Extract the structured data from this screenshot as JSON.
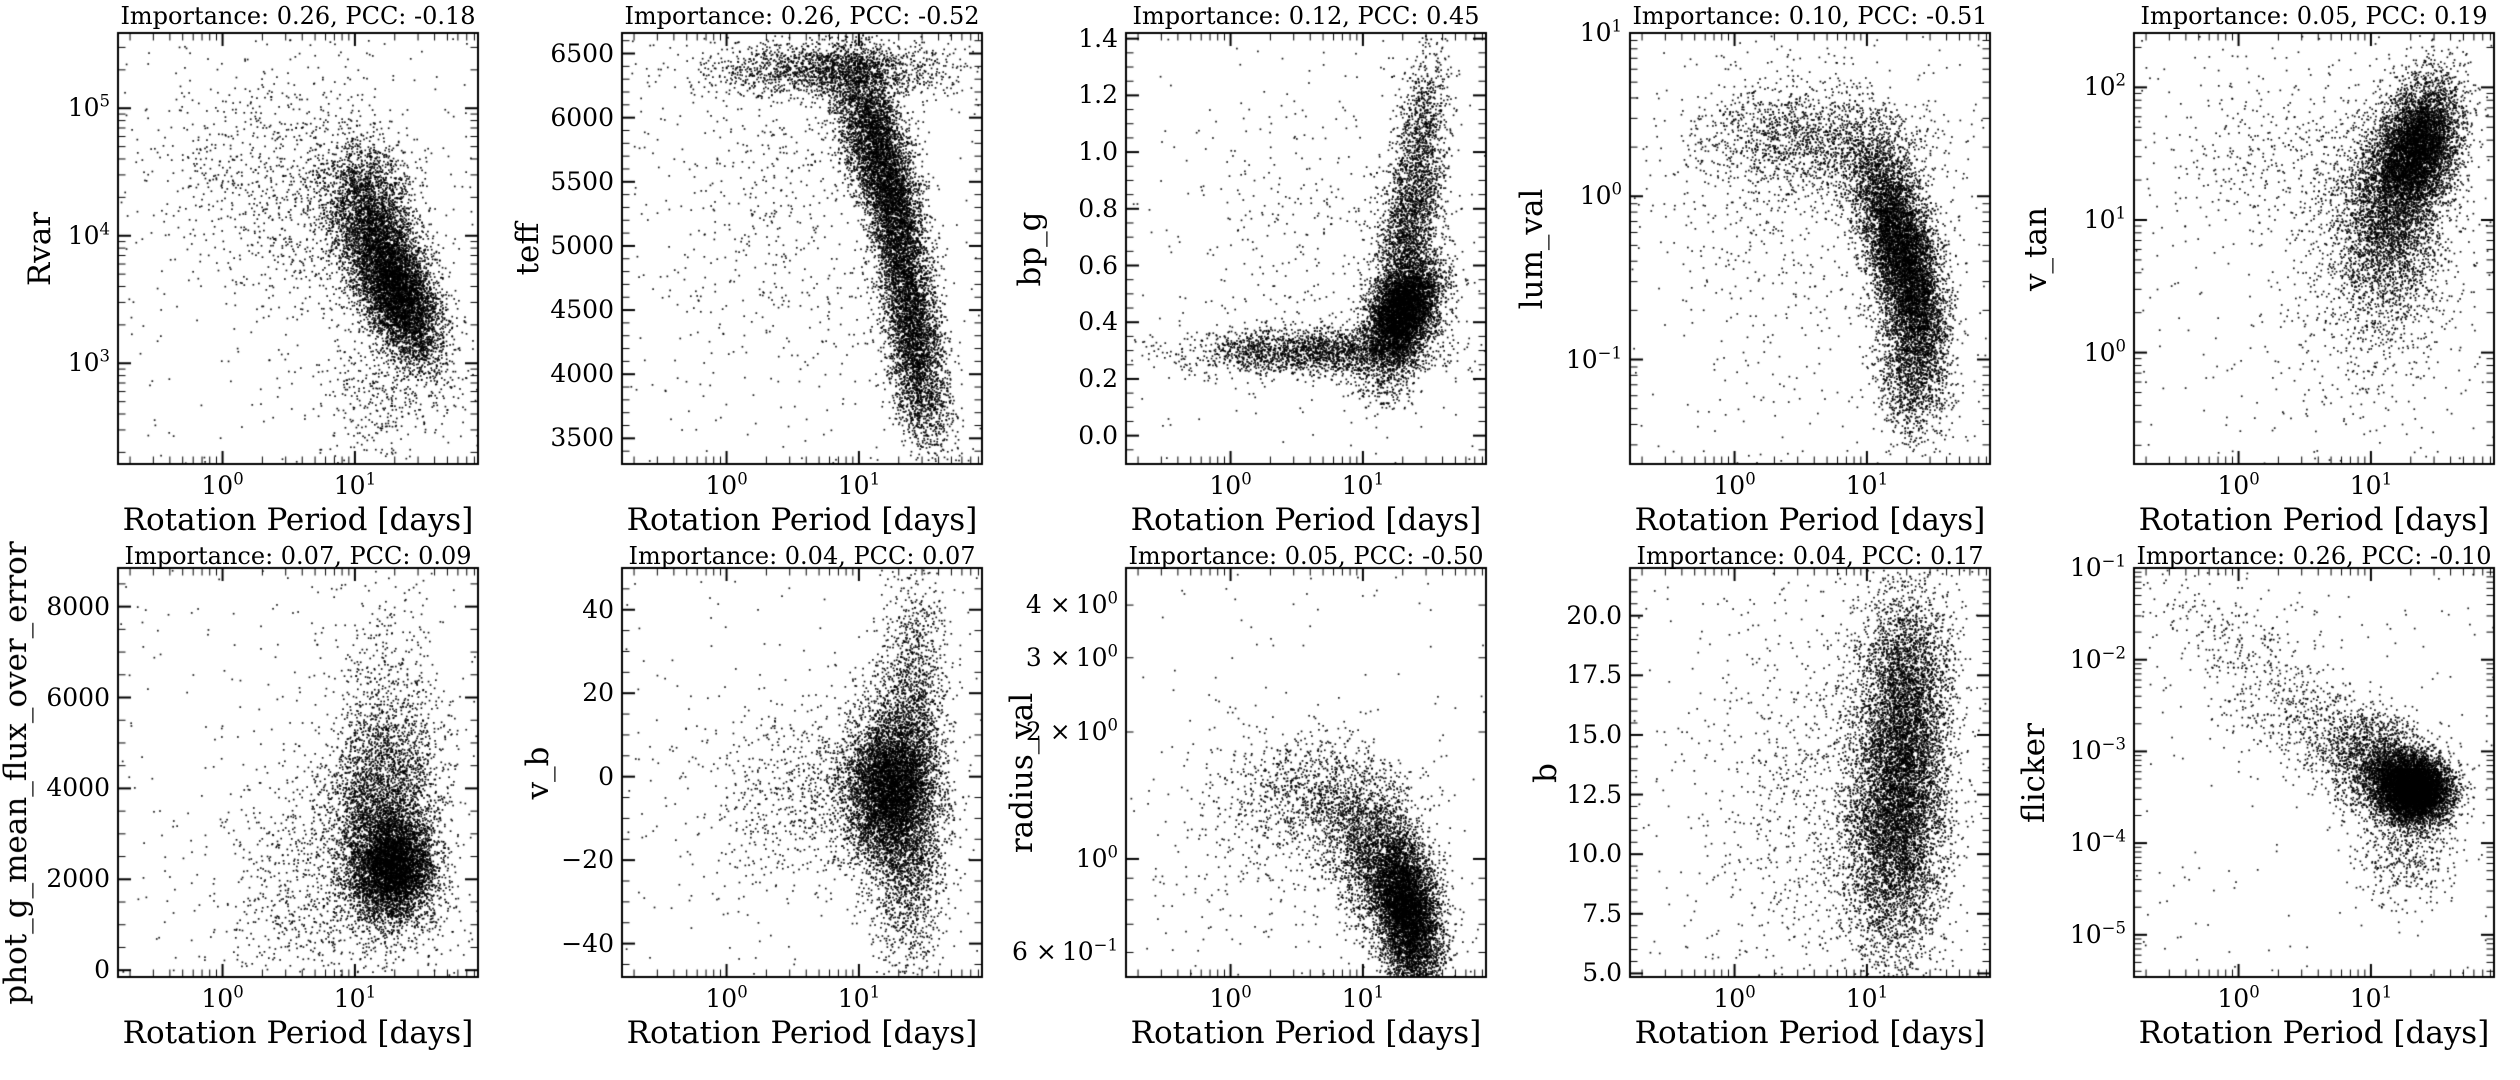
{
  "figure": {
    "background": "#ffffff",
    "text_color": "#000000",
    "marker_color": "#000000"
  },
  "chart_data": {
    "type": "scatter",
    "layout": {
      "rows": 2,
      "cols": 5,
      "grid": false,
      "legend": "none"
    },
    "x_axis": {
      "label": "Rotation Period [days]",
      "scale": "log",
      "range_log10": [
        -0.79,
        1.93
      ],
      "ticks": [
        {
          "mant": "10",
          "exp": "0",
          "v": 0
        },
        {
          "mant": "10",
          "exp": "1",
          "v": 1
        }
      ]
    },
    "panels": [
      {
        "title": "Importance: 0.26, PCC: -0.18",
        "importance": 0.26,
        "pcc": -0.18,
        "ylabel": "Rvar",
        "y_scale": "log",
        "y_range": [
          2.21,
          5.59
        ],
        "y_ticks": [
          {
            "mant": "10",
            "exp": "3",
            "v": 3
          },
          {
            "mant": "10",
            "exp": "4",
            "v": 4
          },
          {
            "mant": "10",
            "exp": "5",
            "v": 5
          }
        ],
        "clusters": [
          {
            "n": 5200,
            "cx": 1.32,
            "sx": 0.16,
            "cy": 3.55,
            "sy": 0.28,
            "rho": -0.5
          },
          {
            "n": 2800,
            "cx": 1.12,
            "sx": 0.18,
            "cy": 4.15,
            "sy": 0.3,
            "rho": -0.3
          },
          {
            "n": 900,
            "cx": 0.75,
            "sx": 0.45,
            "cy": 4.2,
            "sy": 0.5,
            "rho": -0.2
          },
          {
            "n": 350,
            "cx": 0.2,
            "sx": 0.45,
            "cy": 4.6,
            "sy": 0.55,
            "rho": 0
          },
          {
            "n": 350,
            "cx": 1.2,
            "sx": 0.25,
            "cy": 2.75,
            "sy": 0.25,
            "rho": 0
          }
        ],
        "n_background": 220
      },
      {
        "title": "Importance: 0.26, PCC: -0.52",
        "importance": 0.26,
        "pcc": -0.52,
        "ylabel": "teff",
        "y_scale": "linear",
        "y_range": [
          3300,
          6660
        ],
        "y_minor": 100,
        "y_ticks": [
          {
            "mant": "3500",
            "v": 3500
          },
          {
            "mant": "4000",
            "v": 4000
          },
          {
            "mant": "4500",
            "v": 4500
          },
          {
            "mant": "5000",
            "v": 5000
          },
          {
            "mant": "5500",
            "v": 5500
          },
          {
            "mant": "6000",
            "v": 6000
          },
          {
            "mant": "6500",
            "v": 6500
          }
        ],
        "clusters": [
          {
            "n": 1800,
            "cx": 0.8,
            "sx": 0.45,
            "cy": 6380,
            "sy": 110,
            "rho": 0
          },
          {
            "n": 3200,
            "cx": 1.1,
            "sx": 0.15,
            "cy": 5850,
            "sy": 350,
            "rho": -0.5
          },
          {
            "n": 3800,
            "cx": 1.3,
            "sx": 0.13,
            "cy": 5100,
            "sy": 450,
            "rho": -0.6
          },
          {
            "n": 1800,
            "cx": 1.4,
            "sx": 0.12,
            "cy": 4300,
            "sy": 300,
            "rho": -0.5
          },
          {
            "n": 700,
            "cx": 1.45,
            "sx": 0.12,
            "cy": 3800,
            "sy": 200,
            "rho": -0.4
          },
          {
            "n": 550,
            "cx": 0.4,
            "sx": 0.5,
            "cy": 5300,
            "sy": 800,
            "rho": 0
          }
        ],
        "n_background": 180
      },
      {
        "title": "Importance: 0.12, PCC: 0.45",
        "importance": 0.12,
        "pcc": 0.45,
        "ylabel": "bp_g",
        "y_scale": "linear",
        "y_range": [
          -0.1,
          1.42
        ],
        "y_minor": 0.05,
        "y_ticks": [
          {
            "mant": "0.0",
            "v": 0.0
          },
          {
            "mant": "0.2",
            "v": 0.2
          },
          {
            "mant": "0.4",
            "v": 0.4
          },
          {
            "mant": "0.6",
            "v": 0.6
          },
          {
            "mant": "0.8",
            "v": 0.8
          },
          {
            "mant": "1.0",
            "v": 1.0
          },
          {
            "mant": "1.2",
            "v": 1.2
          },
          {
            "mant": "1.4",
            "v": 1.4
          }
        ],
        "clusters": [
          {
            "n": 2100,
            "cx": 0.6,
            "sx": 0.45,
            "cy": 0.3,
            "sy": 0.04,
            "rho": 0.05
          },
          {
            "n": 5200,
            "cx": 1.3,
            "sx": 0.14,
            "cy": 0.44,
            "sy": 0.09,
            "rho": 0.35
          },
          {
            "n": 2100,
            "cx": 1.35,
            "sx": 0.13,
            "cy": 0.75,
            "sy": 0.18,
            "rho": 0.4
          },
          {
            "n": 650,
            "cx": 1.45,
            "sx": 0.1,
            "cy": 1.1,
            "sy": 0.15,
            "rho": 0.3
          },
          {
            "n": 300,
            "cx": 0.6,
            "sx": 0.5,
            "cy": 0.75,
            "sy": 0.25,
            "rho": 0
          },
          {
            "n": 260,
            "cx": 1.15,
            "sx": 0.15,
            "cy": 0.2,
            "sy": 0.06,
            "rho": 0
          }
        ],
        "n_background": 150
      },
      {
        "title": "Importance: 0.10, PCC: -0.51",
        "importance": 0.1,
        "pcc": -0.51,
        "ylabel": "lum_val",
        "y_scale": "log",
        "y_range": [
          -1.64,
          1.0
        ],
        "y_ticks": [
          {
            "mant": "10",
            "exp": "−1",
            "v": -1
          },
          {
            "mant": "10",
            "exp": "0",
            "v": 0
          },
          {
            "mant": "10",
            "exp": "1",
            "v": 1
          }
        ],
        "clusters": [
          {
            "n": 1600,
            "cx": 0.6,
            "sx": 0.42,
            "cy": 0.33,
            "sy": 0.17,
            "rho": -0.15
          },
          {
            "n": 4300,
            "cx": 1.2,
            "sx": 0.16,
            "cy": -0.2,
            "sy": 0.3,
            "rho": -0.5
          },
          {
            "n": 3300,
            "cx": 1.35,
            "sx": 0.13,
            "cy": -0.6,
            "sy": 0.3,
            "rho": -0.4
          },
          {
            "n": 900,
            "cx": 1.3,
            "sx": 0.13,
            "cy": -1.1,
            "sy": 0.2,
            "rho": -0.2
          },
          {
            "n": 450,
            "cx": 0.3,
            "sx": 0.5,
            "cy": 0.0,
            "sy": 0.6,
            "rho": 0
          }
        ],
        "n_background": 200
      },
      {
        "title": "Importance: 0.05, PCC: 0.19",
        "importance": 0.05,
        "pcc": 0.19,
        "ylabel": "v_tan",
        "y_scale": "log",
        "y_range": [
          -0.84,
          2.41
        ],
        "y_ticks": [
          {
            "mant": "10",
            "exp": "0",
            "v": 0
          },
          {
            "mant": "10",
            "exp": "1",
            "v": 1
          },
          {
            "mant": "10",
            "exp": "2",
            "v": 2
          }
        ],
        "clusters": [
          {
            "n": 5200,
            "cx": 1.35,
            "sx": 0.16,
            "cy": 1.55,
            "sy": 0.26,
            "rho": 0.3
          },
          {
            "n": 2400,
            "cx": 1.15,
            "sx": 0.2,
            "cy": 1.15,
            "sy": 0.3,
            "rho": 0.1
          },
          {
            "n": 1100,
            "cx": 1.1,
            "sx": 0.25,
            "cy": 0.7,
            "sy": 0.3,
            "rho": 0
          },
          {
            "n": 500,
            "cx": 0.4,
            "sx": 0.5,
            "cy": 1.45,
            "sy": 0.35,
            "rho": 0
          },
          {
            "n": 300,
            "cx": 1.0,
            "sx": 0.35,
            "cy": 0.1,
            "sy": 0.35,
            "rho": 0
          }
        ],
        "n_background": 220
      },
      {
        "title": "Importance: 0.07, PCC: 0.09",
        "importance": 0.07,
        "pcc": 0.09,
        "ylabel": "phot_g_mean_flux_over_error",
        "y_scale": "linear",
        "y_range": [
          -150,
          8850
        ],
        "y_minor": 500,
        "y_ticks": [
          {
            "mant": "0",
            "v": 0
          },
          {
            "mant": "2000",
            "v": 2000
          },
          {
            "mant": "4000",
            "v": 4000
          },
          {
            "mant": "6000",
            "v": 6000
          },
          {
            "mant": "8000",
            "v": 8000
          }
        ],
        "clusters": [
          {
            "n": 5200,
            "cx": 1.28,
            "sx": 0.16,
            "cy": 2250,
            "sy": 600,
            "rho": 0.05
          },
          {
            "n": 2400,
            "cx": 1.2,
            "sx": 0.2,
            "cy": 3700,
            "sy": 900,
            "rho": 0.1
          },
          {
            "n": 850,
            "cx": 0.8,
            "sx": 0.45,
            "cy": 2500,
            "sy": 1200,
            "rho": 0
          },
          {
            "n": 500,
            "cx": 1.25,
            "sx": 0.2,
            "cy": 5500,
            "sy": 900,
            "rho": 0
          },
          {
            "n": 320,
            "cx": 0.9,
            "sx": 0.5,
            "cy": 800,
            "sy": 500,
            "rho": 0
          },
          {
            "n": 130,
            "cx": 1.2,
            "sx": 0.25,
            "cy": 7200,
            "sy": 700,
            "rho": 0
          }
        ],
        "n_background": 180
      },
      {
        "title": "Importance: 0.04, PCC: 0.07",
        "importance": 0.04,
        "pcc": 0.07,
        "ylabel": "v_b",
        "y_scale": "linear",
        "y_range": [
          -48,
          50
        ],
        "y_minor": 5,
        "y_ticks": [
          {
            "mant": "−40",
            "v": -40
          },
          {
            "mant": "−20",
            "v": -20
          },
          {
            "mant": "0",
            "v": 0
          },
          {
            "mant": "20",
            "v": 20
          },
          {
            "mant": "40",
            "v": 40
          }
        ],
        "clusters": [
          {
            "n": 5200,
            "cx": 1.22,
            "sx": 0.17,
            "cy": -3,
            "sy": 9,
            "rho": 0.05
          },
          {
            "n": 2400,
            "cx": 1.35,
            "sx": 0.14,
            "cy": 0,
            "sy": 20,
            "rho": 0.1
          },
          {
            "n": 850,
            "cx": 0.7,
            "sx": 0.45,
            "cy": -4,
            "sy": 11,
            "rho": 0
          },
          {
            "n": 600,
            "cx": 1.4,
            "sx": 0.12,
            "cy": -25,
            "sy": 12,
            "rho": 0
          },
          {
            "n": 420,
            "cx": 1.45,
            "sx": 0.12,
            "cy": 25,
            "sy": 10,
            "rho": 0
          }
        ],
        "n_background": 200
      },
      {
        "title": "Importance: 0.05, PCC: -0.50",
        "importance": 0.05,
        "pcc": -0.5,
        "ylabel": "radius_val",
        "y_scale": "log",
        "y_range": [
          -0.28,
          0.69
        ],
        "y_ticks": [
          {
            "pre": "6 ×",
            "mant": "10",
            "exp": "−1",
            "v": -0.2218
          },
          {
            "mant": "10",
            "exp": "0",
            "v": 0
          },
          {
            "pre": "2 ×",
            "mant": "10",
            "exp": "0",
            "v": 0.301
          },
          {
            "pre": "3 ×",
            "mant": "10",
            "exp": "0",
            "v": 0.4771
          },
          {
            "pre": "4 ×",
            "mant": "10",
            "exp": "0",
            "v": 0.6021
          }
        ],
        "clusters": [
          {
            "n": 5800,
            "cx": 1.33,
            "sx": 0.13,
            "cy": -0.12,
            "sy": 0.09,
            "rho": -0.3
          },
          {
            "n": 2000,
            "cx": 1.05,
            "sx": 0.2,
            "cy": 0.02,
            "sy": 0.1,
            "rho": -0.35
          },
          {
            "n": 900,
            "cx": 0.65,
            "sx": 0.35,
            "cy": 0.15,
            "sy": 0.07,
            "rho": -0.15
          },
          {
            "n": 320,
            "cx": 0.35,
            "sx": 0.45,
            "cy": 0.05,
            "sy": 0.15,
            "rho": 0
          },
          {
            "n": 260,
            "cx": 1.35,
            "sx": 0.12,
            "cy": -0.27,
            "sy": 0.05,
            "rho": 0
          }
        ],
        "n_background": 140
      },
      {
        "title": "Importance: 0.04, PCC: 0.17",
        "importance": 0.04,
        "pcc": 0.17,
        "ylabel": "b",
        "y_scale": "linear",
        "y_range": [
          4.85,
          22.0
        ],
        "y_minor": 0.5,
        "y_ticks": [
          {
            "mant": "5.0",
            "v": 5.0
          },
          {
            "mant": "7.5",
            "v": 7.5
          },
          {
            "mant": "10.0",
            "v": 10.0
          },
          {
            "mant": "12.5",
            "v": 12.5
          },
          {
            "mant": "15.0",
            "v": 15.0
          },
          {
            "mant": "17.5",
            "v": 17.5
          },
          {
            "mant": "20.0",
            "v": 20.0
          }
        ],
        "clusters": [
          {
            "n": 4800,
            "cx": 1.28,
            "sx": 0.16,
            "cy": 13.5,
            "sy": 3.2,
            "rho": 0
          },
          {
            "n": 2800,
            "cx": 1.15,
            "sx": 0.2,
            "cy": 10.5,
            "sy": 2.8,
            "rho": 0
          },
          {
            "n": 1500,
            "cx": 1.3,
            "sx": 0.18,
            "cy": 17.5,
            "sy": 2.0,
            "rho": 0
          },
          {
            "n": 850,
            "cx": 0.6,
            "sx": 0.5,
            "cy": 12.5,
            "sy": 4.0,
            "rho": 0
          }
        ],
        "n_background": 200
      },
      {
        "title": "Importance: 0.26, PCC: -0.10",
        "importance": 0.26,
        "pcc": -0.1,
        "ylabel": "flicker",
        "y_scale": "log",
        "y_range": [
          -5.46,
          -1.0
        ],
        "y_ticks": [
          {
            "mant": "10",
            "exp": "−5",
            "v": -5
          },
          {
            "mant": "10",
            "exp": "−4",
            "v": -4
          },
          {
            "mant": "10",
            "exp": "−3",
            "v": -3
          },
          {
            "mant": "10",
            "exp": "−2",
            "v": -2
          },
          {
            "mant": "10",
            "exp": "−1",
            "v": -1
          }
        ],
        "clusters": [
          {
            "n": 6200,
            "cx": 1.32,
            "sx": 0.14,
            "cy": -3.4,
            "sy": 0.18,
            "rho": -0.1
          },
          {
            "n": 1900,
            "cx": 1.1,
            "sx": 0.2,
            "cy": -3.2,
            "sy": 0.3,
            "rho": -0.3
          },
          {
            "n": 650,
            "cx": 0.75,
            "sx": 0.35,
            "cy": -2.9,
            "sy": 0.35,
            "rho": -0.5
          },
          {
            "n": 380,
            "cx": 0.1,
            "sx": 0.35,
            "cy": -2.0,
            "sy": 0.5,
            "rho": -0.6
          },
          {
            "n": 450,
            "cx": 1.25,
            "sx": 0.18,
            "cy": -4.1,
            "sy": 0.3,
            "rho": 0
          }
        ],
        "n_background": 150
      }
    ]
  }
}
